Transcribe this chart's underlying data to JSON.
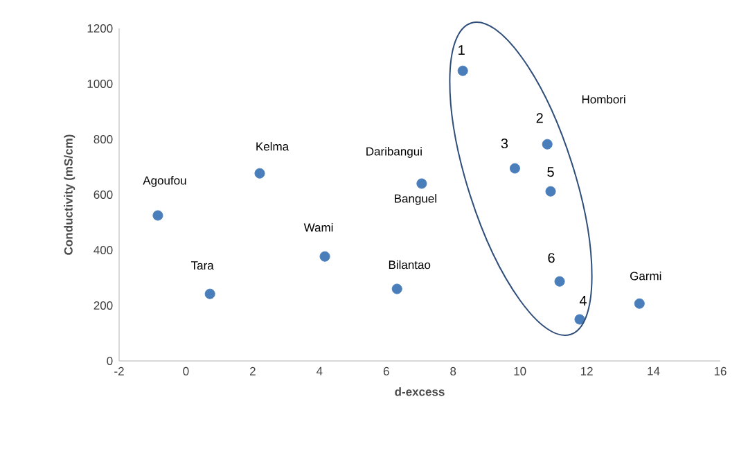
{
  "chart_data": {
    "type": "scatter",
    "xlabel": "d-excess",
    "ylabel": "Conductivity (mS/cm)",
    "color": "#4a7ebb",
    "marker": "circle",
    "x": [
      -0.84,
      0.72,
      2.21,
      4.16,
      6.32,
      7.06,
      8.29,
      10.82,
      9.85,
      11.79,
      10.92,
      11.19,
      13.58
    ],
    "values": [
      525,
      242,
      677,
      377,
      260,
      640,
      1047,
      782,
      695,
      150,
      612,
      287,
      207
    ],
    "xlim": [
      -2,
      16
    ],
    "ylim": [
      0,
      1200
    ],
    "xticks": [
      -2,
      0,
      2,
      4,
      6,
      8,
      10,
      12,
      14,
      16
    ],
    "yticks": [
      0,
      200,
      400,
      600,
      800,
      1000,
      1200
    ],
    "annotations": [
      {
        "text": "Agoufou",
        "x": -0.84,
        "y": 525
      },
      {
        "text": "Tara",
        "x": 0.72,
        "y": 242
      },
      {
        "text": "Kelma",
        "x": 2.21,
        "y": 677
      },
      {
        "text": "Wami",
        "x": 4.16,
        "y": 377
      },
      {
        "text": "Bilantao",
        "x": 6.32,
        "y": 260
      },
      {
        "text": "Daribangui",
        "x": 7.06,
        "y": 640
      },
      {
        "text": "Banguel",
        "x": 7.06,
        "y": 640
      },
      {
        "text": "1",
        "x": 8.29,
        "y": 1047
      },
      {
        "text": "2",
        "x": 10.82,
        "y": 782
      },
      {
        "text": "3",
        "x": 9.85,
        "y": 695
      },
      {
        "text": "4",
        "x": 11.79,
        "y": 150
      },
      {
        "text": "5",
        "x": 10.92,
        "y": 612
      },
      {
        "text": "6",
        "x": 11.19,
        "y": 287
      },
      {
        "text": "Garmi",
        "x": 13.58,
        "y": 207
      },
      "Hombori"
    ]
  }
}
